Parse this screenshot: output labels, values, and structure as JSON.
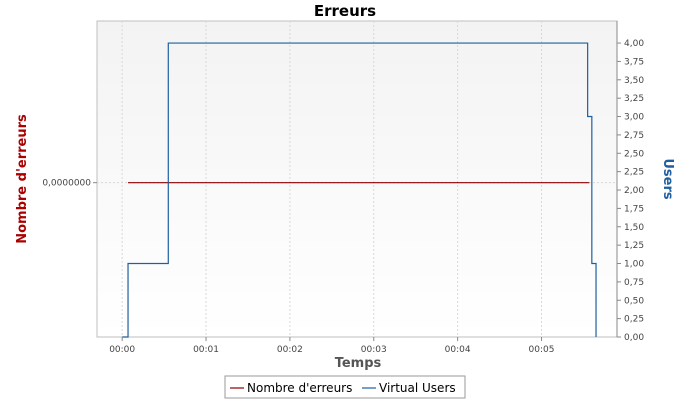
{
  "chart_data": {
    "type": "line",
    "title": "Erreurs",
    "xlabel": "Temps",
    "ylabel_left": "Nombre d'erreurs",
    "ylabel_right": "Users",
    "x_ticks": [
      "00:00",
      "00:01",
      "00:02",
      "00:03",
      "00:04",
      "00:05"
    ],
    "x_tick_values_min": [
      0,
      1,
      2,
      3,
      4,
      5
    ],
    "xlim_min": [
      -0.3,
      5.9
    ],
    "y_left_ticks": [
      "0,0000000"
    ],
    "y_right_ticks": [
      "0,00",
      "0,25",
      "0,50",
      "0,75",
      "1,00",
      "1,25",
      "1,50",
      "1,75",
      "2,00",
      "2,25",
      "2,50",
      "2,75",
      "3,00",
      "3,25",
      "3,50",
      "3,75",
      "4,00"
    ],
    "ylim_right": [
      0,
      4.3
    ],
    "grid": true,
    "legend_position": "bottom",
    "series": [
      {
        "name": "Nombre d'erreurs",
        "color": "#8b0000",
        "axis": "left",
        "x": [
          0.07,
          5.57
        ],
        "y": [
          0,
          0
        ]
      },
      {
        "name": "Virtual Users",
        "color": "#1f5f9f",
        "axis": "right",
        "step": true,
        "x": [
          0.0,
          0.07,
          0.07,
          0.55,
          0.55,
          5.55,
          5.55,
          5.6,
          5.6,
          5.65,
          5.65
        ],
        "y": [
          0,
          0,
          1,
          1,
          4,
          4,
          3,
          3,
          1,
          1,
          0
        ]
      }
    ],
    "left_zero_level_right_units": 2.1
  }
}
